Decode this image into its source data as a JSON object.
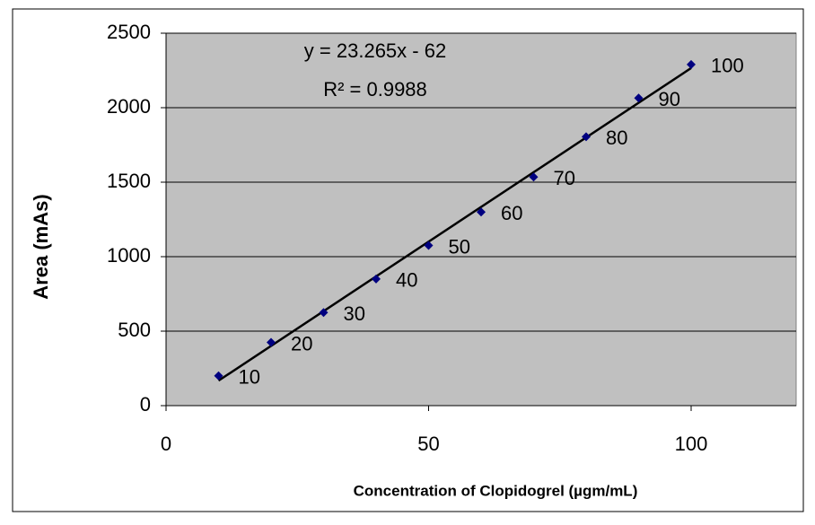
{
  "chart_data": {
    "type": "scatter",
    "x_label": "Concentration of Clopidogrel (µgm/mL)",
    "y_label": "Area (mAs)",
    "x": [
      10,
      20,
      30,
      40,
      50,
      60,
      70,
      80,
      90,
      100
    ],
    "series": [
      {
        "color": "#000080",
        "values": [
          200,
          425,
          625,
          850,
          1075,
          1300,
          1535,
          1805,
          2065,
          2290
        ]
      }
    ],
    "xlim": [
      0,
      120
    ],
    "xticks": [
      0,
      50,
      100
    ],
    "ylim": [
      0,
      2500
    ],
    "yticks": [
      0,
      500,
      1000,
      1500,
      2000,
      2500
    ],
    "grid": true,
    "trendline": true,
    "equation": "y = 23.265x - 62",
    "r_squared": "R² = 0.9988"
  }
}
